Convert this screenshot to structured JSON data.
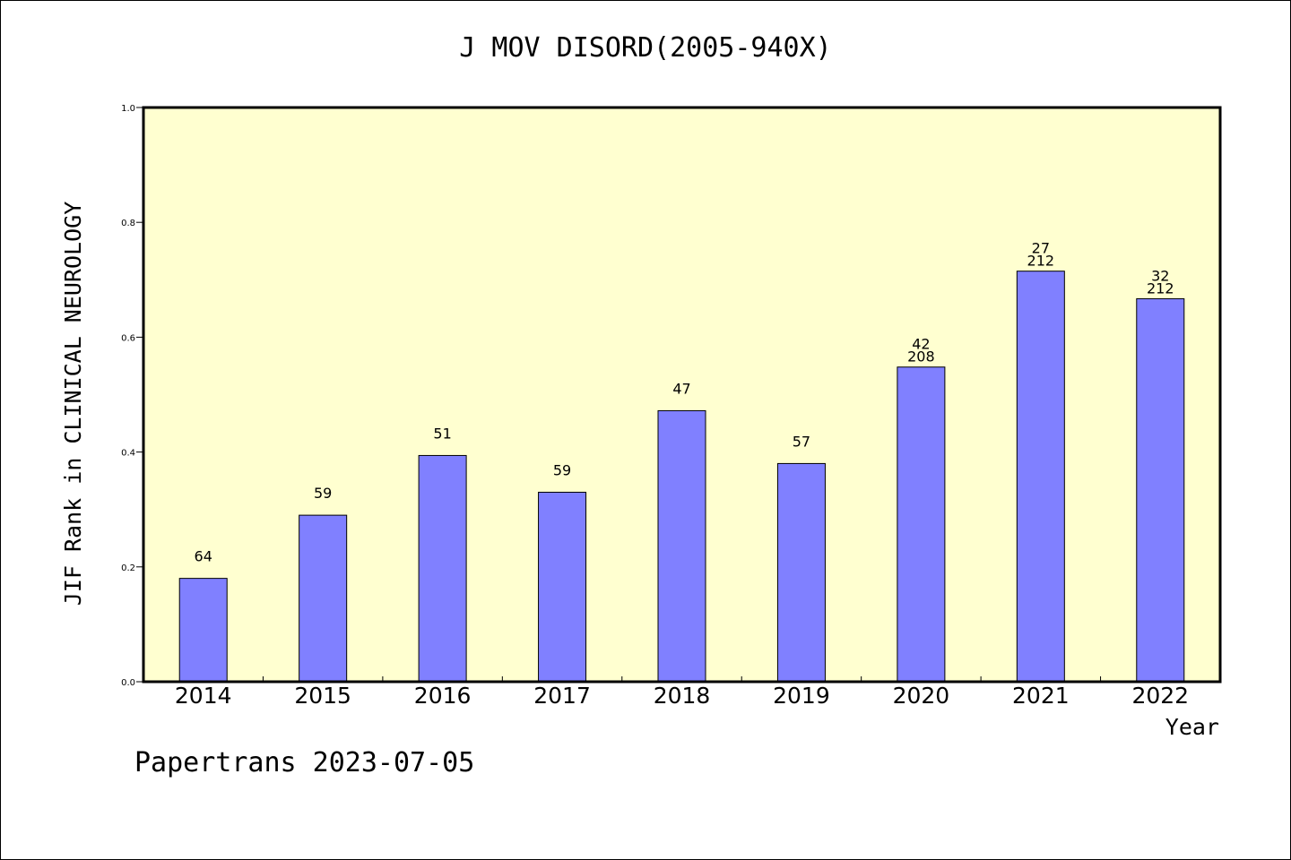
{
  "chart_data": {
    "type": "bar",
    "title": "J MOV DISORD(2005-940X)",
    "xlabel": "Year",
    "ylabel": "JIF Rank in CLINICAL NEUROLOGY",
    "ylim": [
      0,
      1.0
    ],
    "yticks": [
      "0.0",
      "0.2",
      "0.4",
      "0.6",
      "0.8",
      "1.0"
    ],
    "categories": [
      "2014",
      "2015",
      "2016",
      "2017",
      "2018",
      "2019",
      "2020",
      "2021",
      "2022"
    ],
    "values": [
      0.18,
      0.29,
      0.394,
      0.33,
      0.472,
      0.38,
      0.548,
      0.715,
      0.667
    ],
    "labels": [
      [
        "64"
      ],
      [
        "59"
      ],
      [
        "51"
      ],
      [
        "59"
      ],
      [
        "47"
      ],
      [
        "57"
      ],
      [
        "42",
        "208"
      ],
      [
        "27",
        "212"
      ],
      [
        "32",
        "212"
      ]
    ],
    "colors": {
      "plot_background": "#ffffd0",
      "bar_fill": "#8080ff",
      "bar_stroke": "#000000"
    },
    "grid": false,
    "legend": "none"
  },
  "footer": {
    "note": "Papertrans 2023-07-05"
  }
}
